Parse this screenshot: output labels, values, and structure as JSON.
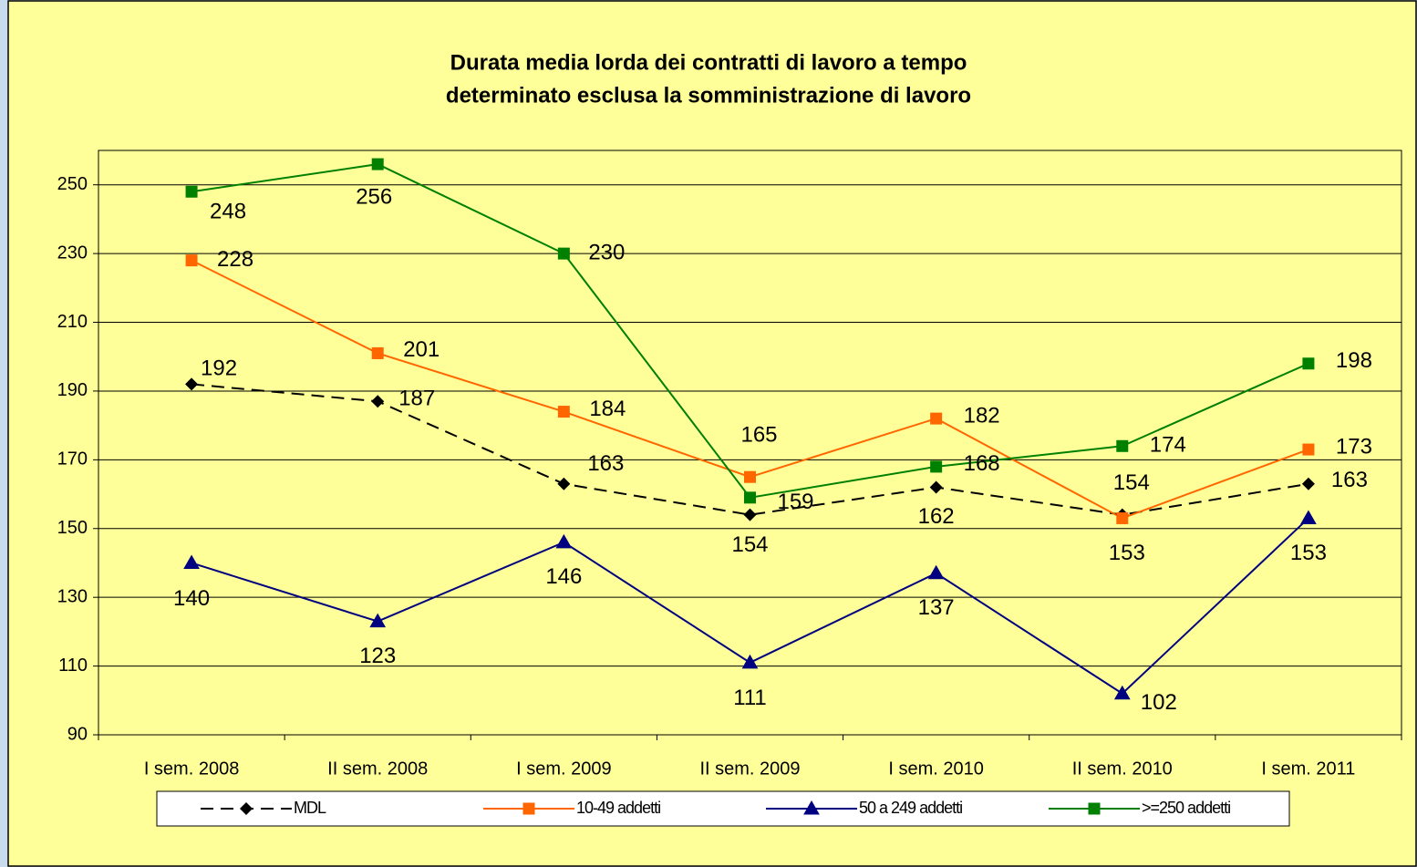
{
  "chart_data": {
    "type": "line",
    "title": [
      "Durata media lorda dei contratti di lavoro a tempo",
      "determinato esclusa la somministrazione di lavoro"
    ],
    "categories": [
      "I sem. 2008",
      "II sem. 2008",
      "I sem. 2009",
      "II sem. 2009",
      "I sem. 2010",
      "II sem. 2010",
      "I sem. 2011"
    ],
    "series": [
      {
        "name": "MDL",
        "color": "#000000",
        "dash": true,
        "marker": "diamond",
        "values": [
          192,
          187,
          163,
          154,
          162,
          154,
          163
        ]
      },
      {
        "name": "10-49 addetti",
        "color": "#ff6600",
        "dash": false,
        "marker": "square",
        "values": [
          228,
          201,
          184,
          165,
          182,
          153,
          173
        ]
      },
      {
        "name": "50 a 249 addetti",
        "color": "#000080",
        "dash": false,
        "marker": "triangle",
        "values": [
          140,
          123,
          146,
          111,
          137,
          102,
          153
        ]
      },
      {
        "name": ">=250 addetti",
        "color": "#008000",
        "dash": false,
        "marker": "square",
        "values": [
          248,
          256,
          230,
          159,
          168,
          174,
          198
        ]
      }
    ],
    "ylim": [
      90,
      260
    ],
    "yticks": [
      90,
      110,
      130,
      150,
      170,
      190,
      210,
      230,
      250
    ],
    "grid": true,
    "legend": "bottom"
  }
}
